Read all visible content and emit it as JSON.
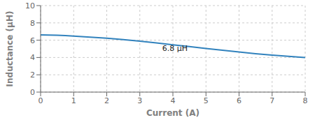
{
  "chart_data": {
    "type": "line",
    "xlabel": "Current (A)",
    "ylabel": "Inductance (μH)",
    "x": [
      0,
      0.25,
      0.5,
      0.75,
      1.0,
      1.5,
      2.0,
      2.5,
      3.0,
      3.5,
      4.0,
      4.5,
      5.0,
      5.5,
      6.0,
      6.5,
      7.0,
      7.5,
      8.0
    ],
    "values": [
      6.62,
      6.6,
      6.57,
      6.53,
      6.48,
      6.36,
      6.22,
      6.06,
      5.88,
      5.68,
      5.47,
      5.26,
      5.04,
      4.83,
      4.63,
      4.44,
      4.27,
      4.13,
      4.0
    ],
    "xlim": [
      0,
      8
    ],
    "ylim": [
      0,
      10
    ],
    "xticks": [
      0,
      1,
      2,
      3,
      4,
      5,
      6,
      7,
      8
    ],
    "yticks": [
      0,
      2,
      4,
      6,
      8,
      10
    ],
    "grid": true,
    "annotations": [
      {
        "text": "6.8 μH",
        "x": 3.55,
        "y": 5.05
      }
    ]
  }
}
